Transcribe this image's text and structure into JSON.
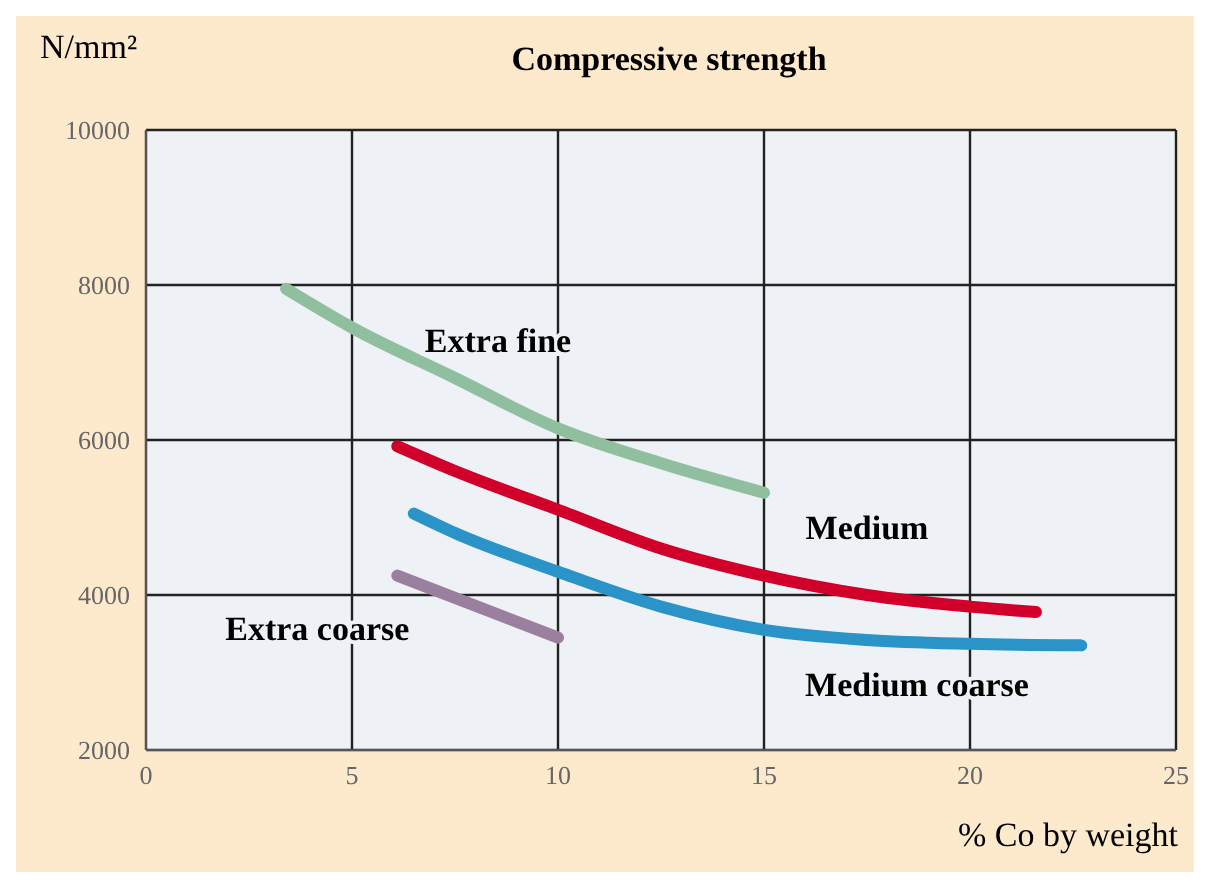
{
  "chart_data": {
    "type": "line",
    "title": "Compressive strength",
    "ylabel": "N/mm²",
    "xlabel": "% Co by weight",
    "xlim": [
      0,
      25
    ],
    "xticks": [
      0,
      5,
      10,
      15,
      20,
      25
    ],
    "ylim": [
      2000,
      10000
    ],
    "yticks": [
      2000,
      4000,
      6000,
      8000,
      10000
    ],
    "grid": true,
    "marker": "none",
    "line_style": "solid",
    "series": [
      {
        "name": "Extra fine",
        "color": "#8fbf9f",
        "x": [
          3.4,
          5,
          7.5,
          10,
          12.5,
          15
        ],
        "values": [
          7950,
          7450,
          6800,
          6150,
          5700,
          5320
        ]
      },
      {
        "name": "Medium",
        "color": "#d0002a",
        "x": [
          6.1,
          7.5,
          10,
          12.5,
          15,
          17.5,
          20,
          21.6
        ],
        "values": [
          5920,
          5600,
          5100,
          4600,
          4250,
          4000,
          3850,
          3780
        ]
      },
      {
        "name": "Medium coarse",
        "color": "#2a94c8",
        "x": [
          6.5,
          7.5,
          10,
          12.5,
          15,
          17.5,
          20,
          22.7
        ],
        "values": [
          5050,
          4800,
          4300,
          3850,
          3550,
          3420,
          3370,
          3350
        ]
      },
      {
        "name": "Extra coarse",
        "color": "#9a7f9e",
        "x": [
          6.1,
          10
        ],
        "values": [
          4250,
          3450
        ]
      }
    ]
  }
}
